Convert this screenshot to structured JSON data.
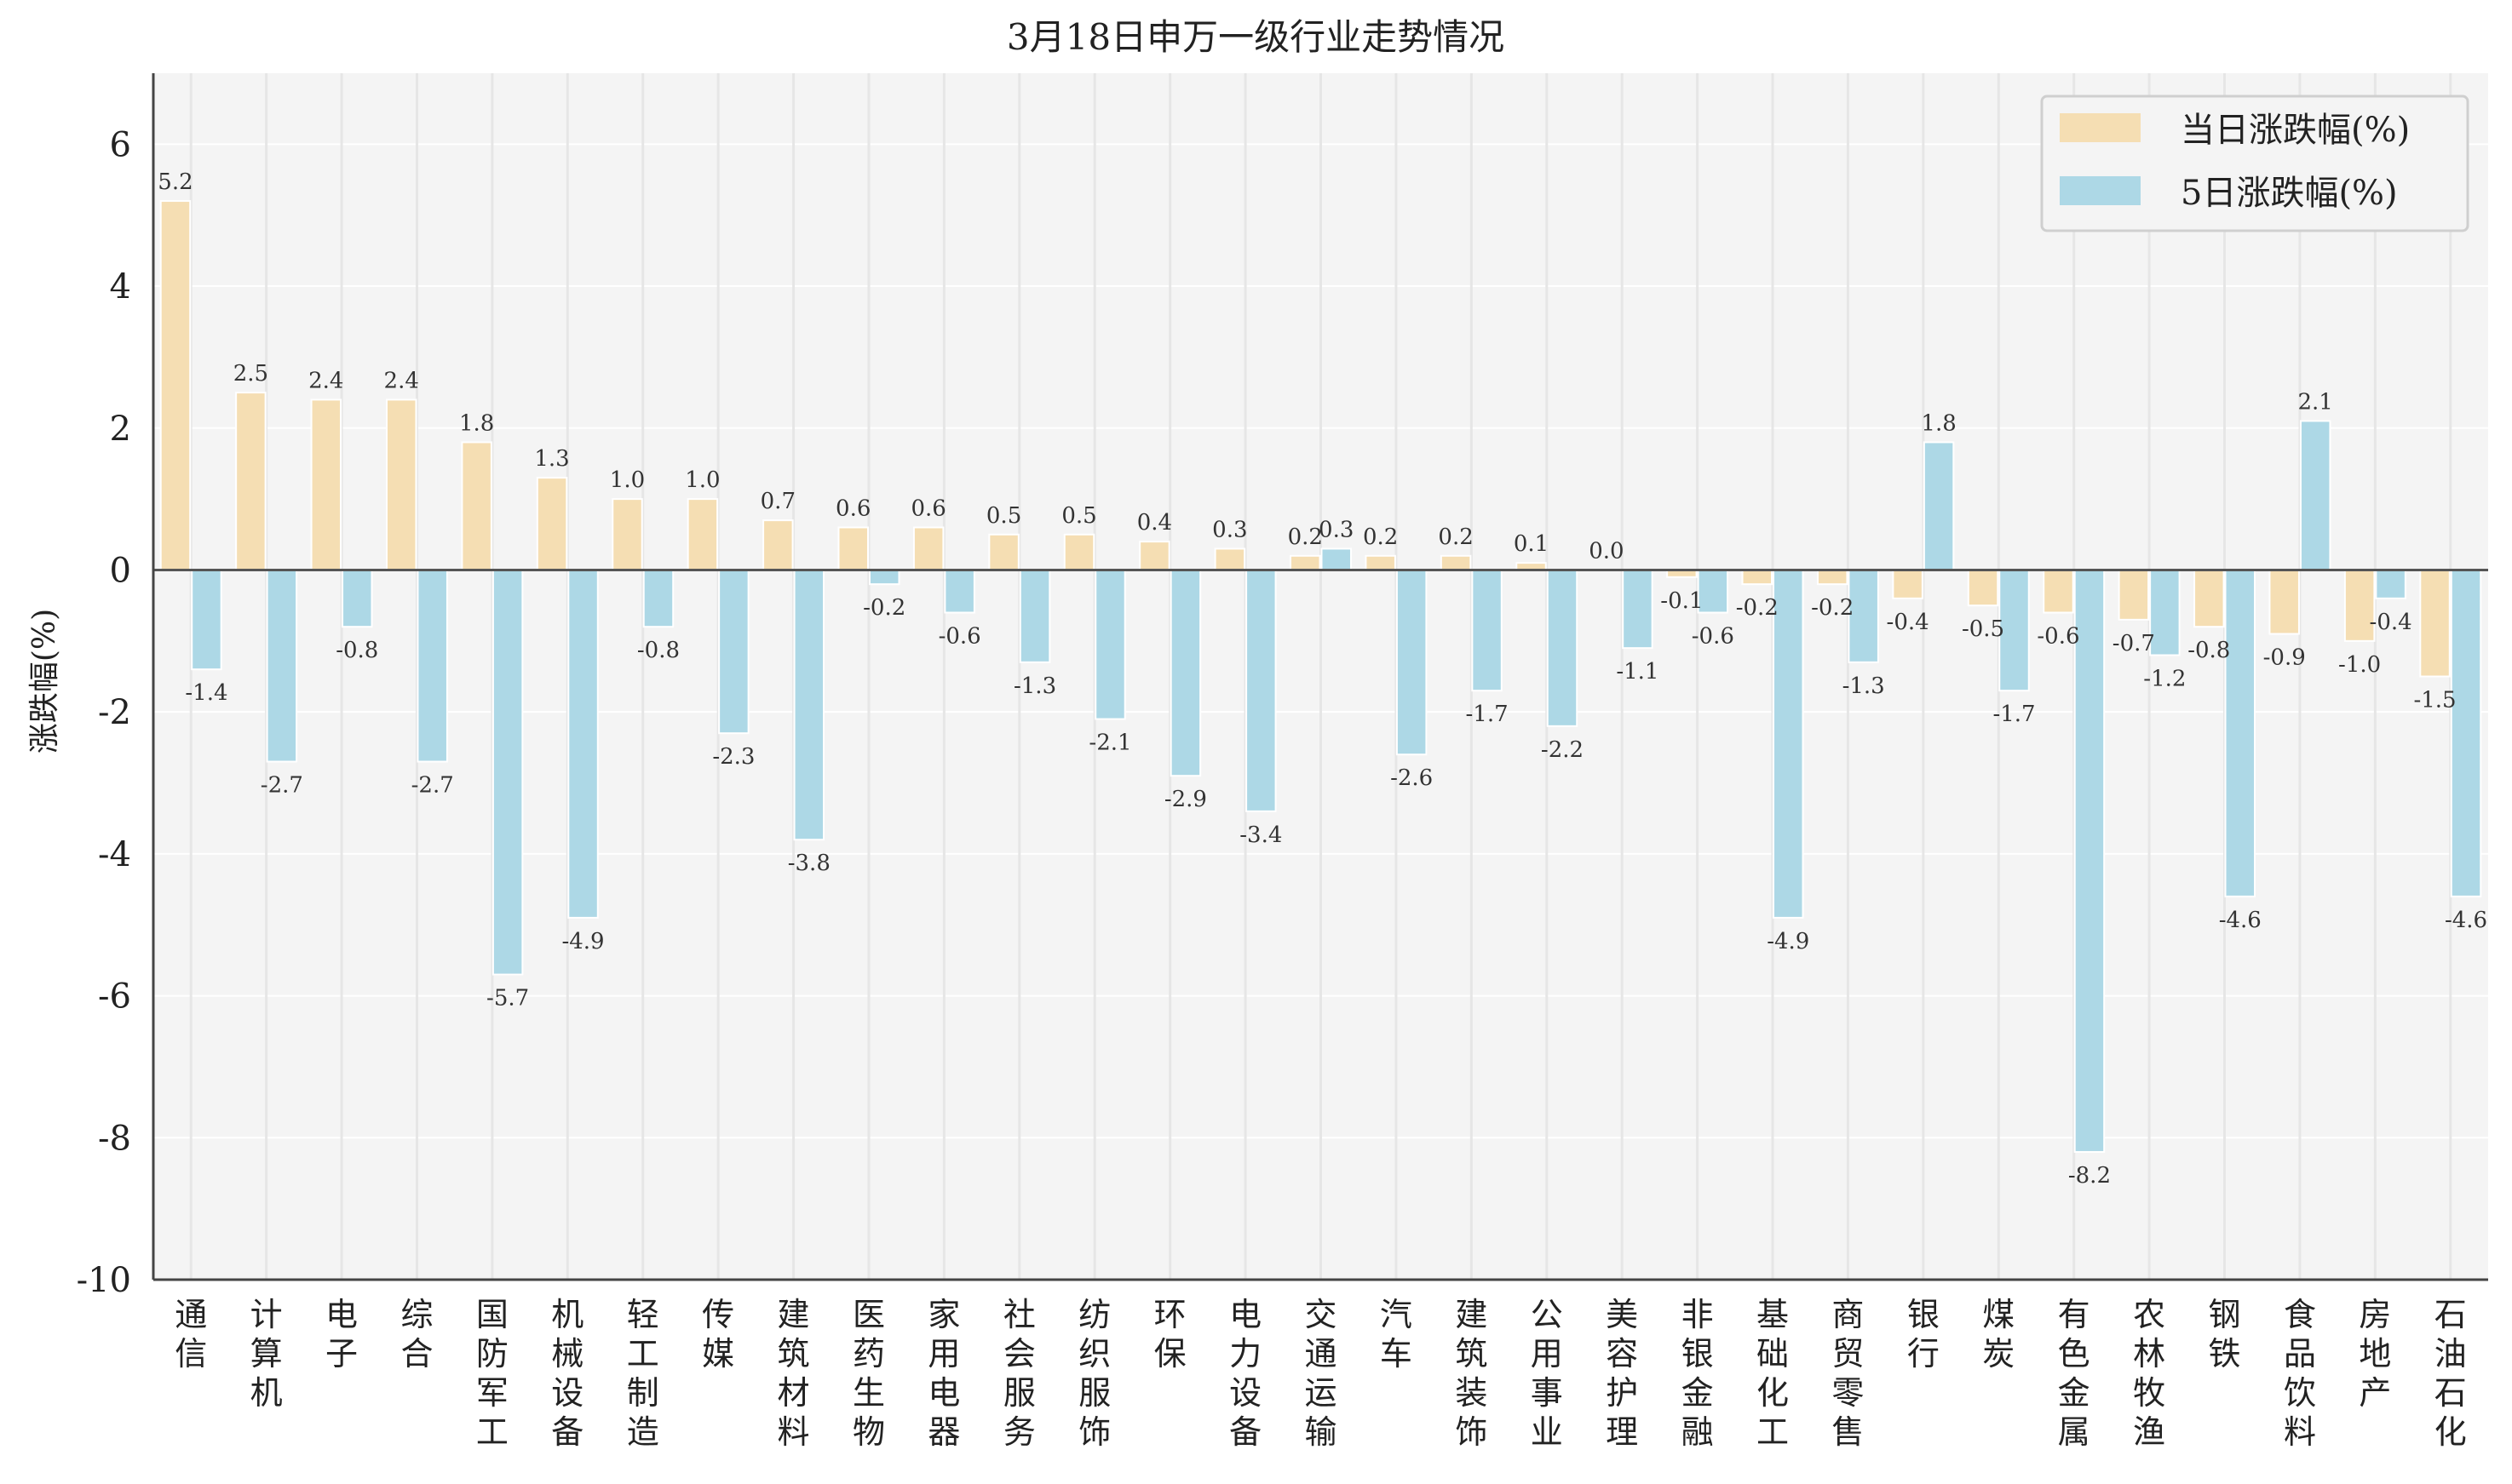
{
  "chart_data": {
    "type": "bar",
    "title": "3月18日申万一级行业走势情况",
    "xlabel": "",
    "ylabel": "涨跌幅(%)",
    "ylim": [
      -10,
      7
    ],
    "yticks": [
      6,
      4,
      2,
      0,
      -2,
      -4,
      -6,
      -8,
      -10
    ],
    "grid": true,
    "legend_position": "top-right",
    "categories": [
      "通信",
      "计算机",
      "电子",
      "综合",
      "国防军工",
      "机械设备",
      "轻工制造",
      "传媒",
      "建筑材料",
      "医药生物",
      "家用电器",
      "社会服务",
      "纺织服饰",
      "环保",
      "电力设备",
      "交通运输",
      "汽车",
      "建筑装饰",
      "公用事业",
      "美容护理",
      "非银金融",
      "基础化工",
      "商贸零售",
      "银行",
      "煤炭",
      "有色金属",
      "农林牧渔",
      "钢铁",
      "食品饮料",
      "房地产",
      "石油石化"
    ],
    "series": [
      {
        "name": "当日涨跌幅(%)",
        "color": "#f5deb3",
        "values": [
          5.2,
          2.5,
          2.4,
          2.4,
          1.8,
          1.3,
          1.0,
          1.0,
          0.7,
          0.6,
          0.6,
          0.5,
          0.5,
          0.4,
          0.3,
          0.2,
          0.2,
          0.2,
          0.1,
          0.0,
          -0.1,
          -0.2,
          -0.2,
          -0.4,
          -0.5,
          -0.6,
          -0.7,
          -0.8,
          -0.9,
          -1.0,
          -1.5
        ]
      },
      {
        "name": "5日涨跌幅(%)",
        "color": "#add8e6",
        "values": [
          -1.4,
          -2.7,
          -0.8,
          -2.7,
          -5.7,
          -4.9,
          -0.8,
          -2.3,
          -3.8,
          -0.2,
          -0.6,
          -1.3,
          -2.1,
          -2.9,
          -3.4,
          0.3,
          -2.6,
          -1.7,
          -2.2,
          -1.1,
          -0.6,
          -4.9,
          -1.3,
          1.8,
          -1.7,
          -8.2,
          -1.2,
          -4.6,
          2.1,
          -0.4,
          -4.6
        ]
      }
    ]
  }
}
